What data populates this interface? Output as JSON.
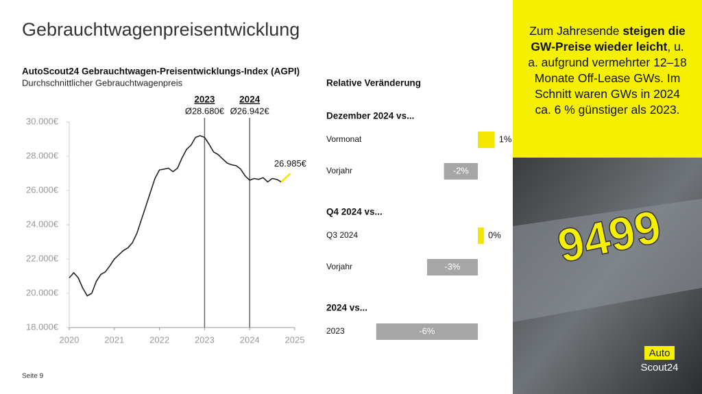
{
  "header": {
    "title": "Gebrauchtwagenpreisentwicklung"
  },
  "chart_data": [
    {
      "type": "line",
      "title": "AutoScout24 Gebrauchtwagen-Preisentwicklungs-Index (AGPI)",
      "subtitle": "Durchschnittlicher Gebrauchtwagenpreis",
      "x": [
        2020,
        2020.1,
        2020.2,
        2020.3,
        2020.4,
        2020.5,
        2020.6,
        2020.7,
        2020.8,
        2020.9,
        2021,
        2021.1,
        2021.2,
        2021.3,
        2021.4,
        2021.5,
        2021.6,
        2021.7,
        2021.8,
        2021.9,
        2022,
        2022.1,
        2022.2,
        2022.3,
        2022.4,
        2022.5,
        2022.6,
        2022.7,
        2022.8,
        2022.9,
        2023,
        2023.1,
        2023.2,
        2023.3,
        2023.4,
        2023.5,
        2023.6,
        2023.7,
        2023.8,
        2023.9,
        2024,
        2024.1,
        2024.2,
        2024.3,
        2024.4,
        2024.5,
        2024.6,
        2024.7,
        2024.8,
        2024.9
      ],
      "series": [
        {
          "color": "#222222",
          "values": [
            20900,
            21200,
            20900,
            20300,
            19850,
            20000,
            20700,
            21100,
            21250,
            21600,
            22000,
            22250,
            22500,
            22650,
            22950,
            23500,
            24300,
            25100,
            25900,
            26700,
            27200,
            27250,
            27300,
            27100,
            27300,
            27900,
            28400,
            28650,
            29100,
            29200,
            29100,
            28700,
            28250,
            28100,
            27850,
            27600,
            27500,
            27450,
            27250,
            26850,
            26600,
            26700,
            26650,
            26750,
            26500,
            26700,
            26650,
            26500,
            null,
            null
          ]
        },
        {
          "color": "#f5e600",
          "values": [
            null,
            null,
            null,
            null,
            null,
            null,
            null,
            null,
            null,
            null,
            null,
            null,
            null,
            null,
            null,
            null,
            null,
            null,
            null,
            null,
            null,
            null,
            null,
            null,
            null,
            null,
            null,
            null,
            null,
            null,
            null,
            null,
            null,
            null,
            null,
            null,
            null,
            null,
            null,
            null,
            null,
            null,
            null,
            null,
            null,
            null,
            null,
            26500,
            26750,
            26985
          ]
        }
      ],
      "end_label": "26.985€",
      "markers": [
        {
          "x": 2023,
          "label": "2023",
          "average": "Ø28.680€"
        },
        {
          "x": 2024,
          "label": "2024",
          "average": "Ø26.942€"
        }
      ],
      "xlim": [
        2020,
        2025
      ],
      "xticks": [
        2020,
        2021,
        2022,
        2023,
        2024,
        2025
      ],
      "ylim": [
        18000,
        30000
      ],
      "yticks": [
        {
          "value": 18000,
          "label": "18.000€"
        },
        {
          "value": 20000,
          "label": "20.000€"
        },
        {
          "value": 22000,
          "label": "22.000€"
        },
        {
          "value": 24000,
          "label": "24.000€"
        },
        {
          "value": 26000,
          "label": "26.000€"
        },
        {
          "value": 28000,
          "label": "28.000€"
        },
        {
          "value": 30000,
          "label": "30.000€"
        }
      ]
    },
    {
      "type": "hbar",
      "title": "Relative Veränderung",
      "positive_color": "#f5e600",
      "negative_color": "#a6a6a6",
      "groups": [
        {
          "title": "Dezember 2024 vs...",
          "categories": [
            "Vormonat",
            "Vorjahr"
          ],
          "values": [
            1,
            -2
          ],
          "value_labels": [
            "1%",
            "-2%"
          ]
        },
        {
          "title": "Q4 2024 vs...",
          "categories": [
            "Q3 2024",
            "Vorjahr"
          ],
          "values": [
            0,
            -3
          ],
          "value_labels": [
            "0%",
            "-3%"
          ]
        },
        {
          "title": "2024 vs...",
          "categories": [
            "2023"
          ],
          "values": [
            -6
          ],
          "value_labels": [
            "-6%"
          ]
        }
      ]
    }
  ],
  "sidebar": {
    "segments": [
      {
        "text": "Zum Jahresende ",
        "bold": false
      },
      {
        "text": "steigen die GW-Preise wieder leicht",
        "bold": true
      },
      {
        "text": ", u. a. aufgrund vermehrter 12–18 Monate Off-Lease GWs. Im Schnitt waren GWs in 2024 ca. 6 % günstiger als 2023.",
        "bold": false
      }
    ]
  },
  "photo": {
    "sign": "9499"
  },
  "logo": {
    "line1": "Auto",
    "line2": "Scout24"
  },
  "footer": {
    "page": "Seite 9"
  }
}
